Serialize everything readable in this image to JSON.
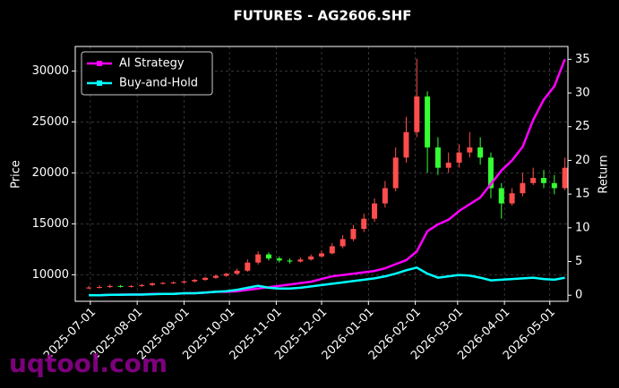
{
  "chart_data": {
    "type": "candlestick",
    "title": "FUTURES - AG2606.SHF",
    "ylabel": "Price",
    "y2label": "Return",
    "watermark": "uqtool.com",
    "x": [
      "2025-06-30",
      "2025-07-07",
      "2025-07-14",
      "2025-07-21",
      "2025-07-28",
      "2025-08-04",
      "2025-08-11",
      "2025-08-18",
      "2025-08-25",
      "2025-09-01",
      "2025-09-08",
      "2025-09-15",
      "2025-09-22",
      "2025-09-29",
      "2025-10-06",
      "2025-10-13",
      "2025-10-20",
      "2025-10-27",
      "2025-11-03",
      "2025-11-10",
      "2025-11-17",
      "2025-11-24",
      "2025-12-01",
      "2025-12-08",
      "2025-12-15",
      "2025-12-22",
      "2025-12-29",
      "2026-01-05",
      "2026-01-12",
      "2026-01-19",
      "2026-01-26",
      "2026-02-02",
      "2026-02-09",
      "2026-02-16",
      "2026-02-23",
      "2026-03-02",
      "2026-03-09",
      "2026-03-16",
      "2026-03-23",
      "2026-03-30",
      "2026-04-06",
      "2026-04-13",
      "2026-04-20",
      "2026-04-27",
      "2026-05-04",
      "2026-05-11"
    ],
    "open": [
      8700,
      8750,
      8800,
      8900,
      8850,
      8900,
      9000,
      9150,
      9200,
      9250,
      9350,
      9500,
      9700,
      9900,
      10100,
      10400,
      11200,
      12000,
      11600,
      11400,
      11300,
      11500,
      11800,
      12100,
      12800,
      13500,
      14500,
      15500,
      17000,
      18500,
      21500,
      24000,
      27500,
      22500,
      20500,
      21000,
      22000,
      22500,
      21500,
      18500,
      17000,
      18000,
      19000,
      19500,
      19000,
      18500
    ],
    "high": [
      8900,
      8950,
      9050,
      9000,
      9000,
      9100,
      9250,
      9300,
      9350,
      9450,
      9600,
      9800,
      10000,
      10200,
      10600,
      11500,
      12300,
      12200,
      11800,
      11600,
      11700,
      12000,
      12400,
      13100,
      13900,
      14900,
      16000,
      17500,
      19200,
      22500,
      25500,
      31200,
      28000,
      23500,
      22000,
      22800,
      24000,
      23500,
      22000,
      19000,
      18500,
      20000,
      20500,
      20300,
      19800,
      21500
    ],
    "low": [
      8600,
      8650,
      8700,
      8750,
      8750,
      8800,
      8900,
      9050,
      9100,
      9150,
      9250,
      9400,
      9600,
      9800,
      10000,
      10300,
      11000,
      11400,
      11200,
      11100,
      11200,
      11400,
      11700,
      12000,
      12600,
      13300,
      14200,
      15200,
      16600,
      18200,
      21000,
      23500,
      20000,
      19800,
      20000,
      20500,
      21500,
      20800,
      17500,
      15500,
      16800,
      17700,
      18800,
      18500,
      17900,
      18300
    ],
    "close": [
      8750,
      8800,
      8900,
      8850,
      8900,
      9000,
      9150,
      9200,
      9250,
      9350,
      9500,
      9700,
      9900,
      10100,
      10400,
      11200,
      12000,
      11600,
      11400,
      11300,
      11500,
      11800,
      12100,
      12800,
      13500,
      14500,
      15500,
      17000,
      18500,
      21500,
      24000,
      27500,
      22500,
      20500,
      21000,
      22000,
      22500,
      21500,
      18500,
      17000,
      18000,
      19000,
      19500,
      19000,
      18500,
      20500
    ],
    "up_color": "#ff4d4d",
    "down_color": "#33ff33",
    "series": [
      {
        "name": "AI Strategy",
        "color": "#ff00ff",
        "axis": "y2",
        "values": [
          0,
          0,
          0.05,
          0.1,
          0.1,
          0.1,
          0.2,
          0.2,
          0.2,
          0.3,
          0.3,
          0.4,
          0.5,
          0.5,
          0.6,
          0.8,
          1,
          1.2,
          1.4,
          1.6,
          1.8,
          2,
          2.4,
          2.8,
          3,
          3.2,
          3.4,
          3.6,
          4,
          4.6,
          5.2,
          6.5,
          9.5,
          10.5,
          11.2,
          12.5,
          13.5,
          14.5,
          16.5,
          18.5,
          20,
          22,
          26,
          29,
          31,
          35
        ]
      },
      {
        "name": "Buy-and-Hold",
        "color": "#00ffff",
        "axis": "y2",
        "values": [
          0,
          0,
          0.05,
          0.05,
          0.1,
          0.1,
          0.15,
          0.2,
          0.2,
          0.3,
          0.3,
          0.4,
          0.5,
          0.6,
          0.8,
          1.1,
          1.4,
          1.1,
          1,
          1,
          1.1,
          1.3,
          1.5,
          1.7,
          1.9,
          2.1,
          2.3,
          2.5,
          2.8,
          3.2,
          3.7,
          4.1,
          3.2,
          2.6,
          2.8,
          3,
          2.9,
          2.6,
          2.2,
          2.3,
          2.4,
          2.5,
          2.6,
          2.4,
          2.3,
          2.6
        ]
      }
    ],
    "xlim": [
      "2025-06-21",
      "2026-05-13"
    ],
    "xticks": [
      "2025-07-01",
      "2025-08-01",
      "2025-09-01",
      "2025-10-01",
      "2025-11-01",
      "2025-12-01",
      "2026-01-01",
      "2026-02-01",
      "2026-03-01",
      "2026-04-01",
      "2026-05-01"
    ],
    "ylim": [
      7400,
      32400
    ],
    "yticks": [
      10000,
      15000,
      20000,
      25000,
      30000
    ],
    "y2lim": [
      -0.9,
      36.9
    ],
    "y2ticks": [
      0,
      5,
      10,
      15,
      20,
      25,
      30,
      35
    ],
    "grid": true,
    "legend": "upper left"
  }
}
